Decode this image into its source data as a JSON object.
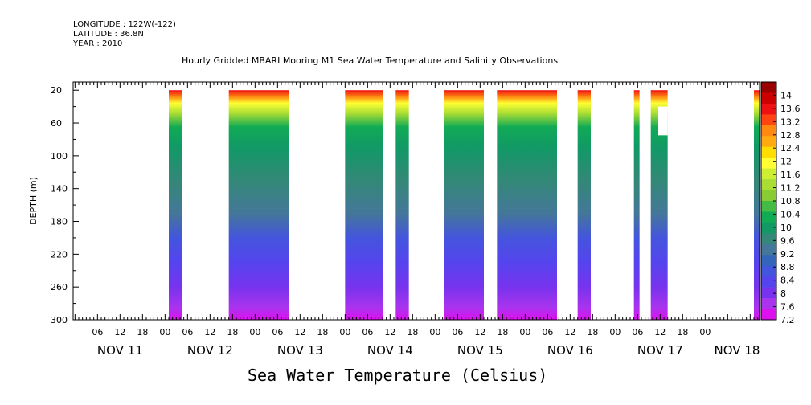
{
  "meta": {
    "longitude": "LONGITUDE : 122W(-122)",
    "latitude": "LATITUDE : 36.8N",
    "year": "YEAR : 2010"
  },
  "chart_data": {
    "type": "heatmap",
    "title": "Hourly Gridded MBARI Mooring M1 Sea Water Temperature and Salinity Observations",
    "xlabel": "Sea Water Temperature (Celsius)",
    "ylabel": "DEPTH (m)",
    "x_unit": "hours since 2010-11-11 00:00",
    "xlim": [
      -0.5,
      182.5
    ],
    "ylim": [
      10,
      300
    ],
    "y_ticks": [
      20,
      60,
      100,
      140,
      180,
      220,
      260,
      300
    ],
    "y_inverted": true,
    "hour_ticks": [
      "06",
      "12",
      "18",
      "00",
      "06",
      "12",
      "18",
      "00",
      "06",
      "12",
      "18",
      "00",
      "06",
      "12",
      "18",
      "00",
      "06",
      "12",
      "18",
      "00",
      "06",
      "12",
      "18",
      "00",
      "06",
      "12",
      "18",
      "00"
    ],
    "day_labels": [
      "NOV 11",
      "NOV 12",
      "NOV 13",
      "NOV 14",
      "NOV 15",
      "NOV 16",
      "NOV 17",
      "NOV 18"
    ],
    "colorbar": {
      "labels": [
        "14",
        "13.6",
        "13.2",
        "12.8",
        "12.4",
        "12",
        "11.6",
        "11.2",
        "10.8",
        "10.4",
        "10",
        "9.6",
        "9.2",
        "8.8",
        "8.4",
        "8",
        "7.6",
        "7.2"
      ],
      "colors": [
        "#990000",
        "#cc0000",
        "#ee1111",
        "#ff4411",
        "#ff8811",
        "#ffaa11",
        "#ffdd00",
        "#ffff33",
        "#ccee33",
        "#aadd33",
        "#88cc33",
        "#44bb44",
        "#11aa55",
        "#119966",
        "#338877",
        "#447799",
        "#3366bb",
        "#4455dd",
        "#5544ee",
        "#7733ee",
        "#aa33ee",
        "#dd11ee"
      ]
    },
    "data_segments": [
      {
        "x_start": 25,
        "x_end": 28.5,
        "depth_end": 300
      },
      {
        "x_start": 41,
        "x_end": 57,
        "depth_end": 300
      },
      {
        "x_start": 72,
        "x_end": 82,
        "depth_end": 300
      },
      {
        "x_start": 85.5,
        "x_end": 89,
        "depth_end": 300
      },
      {
        "x_start": 98.5,
        "x_end": 109,
        "depth_end": 300
      },
      {
        "x_start": 112.5,
        "x_end": 128.5,
        "depth_end": 300
      },
      {
        "x_start": 134,
        "x_end": 137.5,
        "depth_end": 300
      },
      {
        "x_start": 149,
        "x_end": 150.5,
        "depth_end": 300
      },
      {
        "x_start": 153.5,
        "x_end": 158,
        "depth_end": 300
      },
      {
        "x_start": 181,
        "x_end": 182.5,
        "depth_end": 300
      }
    ],
    "data_gaps": [
      {
        "x_start": 155.5,
        "x_end": 158,
        "depth_start": 40,
        "depth_end": 75
      }
    ],
    "temperature_profile": [
      {
        "depth": 20,
        "temp": 13.6
      },
      {
        "depth": 28,
        "temp": 12.8
      },
      {
        "depth": 36,
        "temp": 12.0
      },
      {
        "depth": 48,
        "temp": 11.2
      },
      {
        "depth": 65,
        "temp": 10.4
      },
      {
        "depth": 90,
        "temp": 10.0
      },
      {
        "depth": 130,
        "temp": 9.6
      },
      {
        "depth": 170,
        "temp": 9.2
      },
      {
        "depth": 200,
        "temp": 8.8
      },
      {
        "depth": 230,
        "temp": 8.4
      },
      {
        "depth": 260,
        "temp": 8.0
      },
      {
        "depth": 285,
        "temp": 7.6
      },
      {
        "depth": 300,
        "temp": 7.4
      }
    ]
  }
}
